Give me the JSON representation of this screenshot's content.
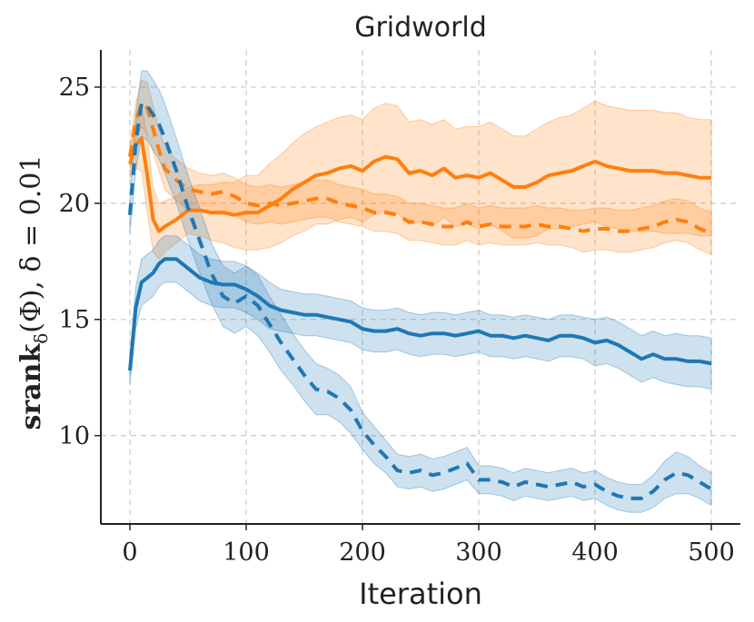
{
  "chart_data": {
    "type": "line",
    "title": "Gridworld",
    "xlabel": "Iteration",
    "ylabel": {
      "main": "srank",
      "subscript": "δ",
      "rest": "(Φ), δ = 0.01"
    },
    "xlim": [
      -25,
      525
    ],
    "ylim": [
      6.2,
      26.6
    ],
    "xticks": [
      0,
      100,
      200,
      300,
      400,
      500
    ],
    "yticks": [
      10,
      15,
      20,
      25
    ],
    "xtick_labels": [
      "0",
      "100",
      "200",
      "300",
      "400",
      "500"
    ],
    "ytick_labels": [
      "10",
      "15",
      "20",
      "25"
    ],
    "grid": true,
    "legend": "none",
    "series": [
      {
        "name": "orange-solid",
        "color": "#ff7f0e",
        "style": "solid",
        "x": [
          0,
          5,
          10,
          15,
          20,
          25,
          30,
          40,
          50,
          60,
          70,
          80,
          90,
          100,
          110,
          120,
          130,
          140,
          150,
          160,
          170,
          180,
          190,
          200,
          210,
          220,
          230,
          240,
          250,
          260,
          270,
          280,
          290,
          300,
          310,
          320,
          330,
          340,
          350,
          360,
          370,
          380,
          390,
          400,
          410,
          420,
          430,
          440,
          450,
          460,
          470,
          480,
          490,
          500
        ],
        "y": [
          21.7,
          22.5,
          22.8,
          21.2,
          19.3,
          18.8,
          19.0,
          19.3,
          19.7,
          19.7,
          19.6,
          19.6,
          19.5,
          19.6,
          19.6,
          19.9,
          20.2,
          20.6,
          20.9,
          21.2,
          21.3,
          21.5,
          21.6,
          21.4,
          21.8,
          22.0,
          21.9,
          21.3,
          21.4,
          21.2,
          21.5,
          21.1,
          21.2,
          21.1,
          21.3,
          21.0,
          20.7,
          20.7,
          20.9,
          21.2,
          21.3,
          21.4,
          21.6,
          21.8,
          21.6,
          21.5,
          21.4,
          21.4,
          21.4,
          21.3,
          21.3,
          21.2,
          21.1,
          21.1
        ],
        "band_halfwidth": [
          0.6,
          1.0,
          1.4,
          1.6,
          1.4,
          1.2,
          1.1,
          1.0,
          1.0,
          1.1,
          1.2,
          1.3,
          1.4,
          1.6,
          1.6,
          1.8,
          1.9,
          2.0,
          2.1,
          2.1,
          2.2,
          2.2,
          2.2,
          2.2,
          2.3,
          2.3,
          2.3,
          2.2,
          2.2,
          2.2,
          2.1,
          2.1,
          2.1,
          2.2,
          2.2,
          2.2,
          2.2,
          2.2,
          2.3,
          2.3,
          2.4,
          2.4,
          2.5,
          2.6,
          2.6,
          2.6,
          2.6,
          2.6,
          2.6,
          2.6,
          2.6,
          2.5,
          2.5,
          2.5
        ]
      },
      {
        "name": "orange-dashed",
        "color": "#ff7f0e",
        "style": "dashed",
        "x": [
          0,
          5,
          10,
          15,
          20,
          25,
          30,
          40,
          50,
          60,
          70,
          80,
          90,
          100,
          110,
          120,
          130,
          140,
          150,
          160,
          170,
          180,
          190,
          200,
          210,
          220,
          230,
          240,
          250,
          260,
          270,
          280,
          290,
          300,
          310,
          320,
          330,
          340,
          350,
          360,
          370,
          380,
          390,
          400,
          410,
          420,
          430,
          440,
          450,
          460,
          470,
          480,
          490,
          500
        ],
        "y": [
          22.0,
          23.5,
          24.3,
          24.1,
          23.2,
          22.3,
          21.5,
          21.0,
          20.6,
          20.5,
          20.4,
          20.5,
          20.3,
          20.0,
          19.9,
          20.0,
          19.9,
          20.0,
          20.1,
          20.2,
          20.2,
          20.0,
          19.9,
          19.8,
          19.6,
          19.6,
          19.5,
          19.2,
          19.2,
          19.1,
          19.0,
          19.0,
          19.2,
          19.0,
          19.1,
          19.0,
          19.0,
          19.0,
          19.1,
          19.0,
          19.0,
          18.9,
          18.8,
          18.9,
          18.9,
          18.8,
          18.8,
          18.9,
          19.0,
          19.2,
          19.3,
          19.2,
          18.9,
          18.7
        ],
        "band_halfwidth": [
          0.5,
          0.8,
          1.0,
          1.1,
          1.0,
          0.9,
          0.9,
          0.9,
          0.9,
          0.8,
          0.8,
          0.8,
          0.8,
          0.8,
          0.8,
          0.8,
          0.8,
          0.8,
          0.8,
          0.8,
          0.8,
          0.8,
          0.8,
          0.8,
          0.8,
          0.8,
          0.8,
          0.8,
          0.8,
          0.8,
          0.8,
          0.8,
          0.8,
          0.8,
          0.8,
          0.8,
          0.8,
          0.8,
          0.8,
          0.8,
          0.8,
          0.8,
          0.9,
          0.9,
          0.9,
          0.9,
          0.9,
          0.9,
          0.9,
          0.9,
          0.9,
          0.9,
          0.9,
          0.9
        ]
      },
      {
        "name": "blue-solid",
        "color": "#1f77b4",
        "style": "solid",
        "x": [
          0,
          5,
          10,
          15,
          20,
          25,
          30,
          40,
          50,
          60,
          70,
          80,
          90,
          100,
          110,
          120,
          130,
          140,
          150,
          160,
          170,
          180,
          190,
          200,
          210,
          220,
          230,
          240,
          250,
          260,
          270,
          280,
          290,
          300,
          310,
          320,
          330,
          340,
          350,
          360,
          370,
          380,
          390,
          400,
          410,
          420,
          430,
          440,
          450,
          460,
          470,
          480,
          490,
          500
        ],
        "y": [
          12.8,
          15.5,
          16.6,
          16.8,
          17.0,
          17.4,
          17.6,
          17.6,
          17.2,
          16.8,
          16.6,
          16.5,
          16.5,
          16.3,
          16.0,
          15.6,
          15.4,
          15.3,
          15.2,
          15.2,
          15.1,
          15.0,
          14.9,
          14.6,
          14.5,
          14.5,
          14.6,
          14.4,
          14.3,
          14.4,
          14.4,
          14.3,
          14.4,
          14.5,
          14.3,
          14.3,
          14.2,
          14.3,
          14.2,
          14.1,
          14.3,
          14.3,
          14.2,
          14.0,
          14.1,
          13.9,
          13.6,
          13.3,
          13.5,
          13.3,
          13.3,
          13.2,
          13.2,
          13.1
        ],
        "band_halfwidth": [
          0.6,
          0.9,
          1.0,
          1.0,
          1.0,
          1.0,
          1.0,
          1.0,
          1.0,
          1.0,
          1.0,
          1.0,
          1.0,
          1.0,
          1.0,
          1.0,
          0.9,
          0.9,
          0.9,
          0.9,
          0.9,
          0.9,
          0.9,
          0.9,
          0.9,
          0.9,
          0.9,
          0.9,
          0.9,
          0.9,
          0.9,
          0.9,
          0.9,
          0.9,
          0.9,
          0.9,
          0.9,
          0.9,
          0.9,
          0.9,
          0.9,
          0.9,
          0.9,
          1.0,
          1.0,
          1.0,
          1.0,
          1.0,
          1.0,
          1.0,
          1.1,
          1.1,
          1.1,
          1.1
        ]
      },
      {
        "name": "blue-dashed",
        "color": "#1f77b4",
        "style": "dashed",
        "x": [
          0,
          5,
          10,
          15,
          20,
          25,
          30,
          40,
          50,
          60,
          70,
          80,
          90,
          100,
          110,
          120,
          130,
          140,
          150,
          160,
          170,
          180,
          190,
          200,
          210,
          220,
          230,
          240,
          250,
          260,
          270,
          280,
          290,
          300,
          310,
          320,
          330,
          340,
          350,
          360,
          370,
          380,
          390,
          400,
          410,
          420,
          430,
          440,
          450,
          460,
          470,
          480,
          490,
          500
        ],
        "y": [
          19.5,
          22.6,
          24.3,
          24.2,
          23.8,
          23.4,
          22.8,
          21.4,
          19.8,
          18.4,
          17.0,
          16.0,
          15.7,
          16.0,
          15.6,
          14.8,
          14.0,
          13.3,
          12.6,
          12.0,
          11.9,
          11.6,
          11.1,
          10.2,
          9.6,
          9.1,
          8.5,
          8.4,
          8.5,
          8.3,
          8.4,
          8.6,
          8.8,
          8.1,
          8.1,
          8.0,
          7.8,
          8.0,
          7.9,
          7.8,
          7.9,
          8.0,
          7.8,
          7.9,
          7.6,
          7.4,
          7.3,
          7.3,
          7.6,
          8.1,
          8.4,
          8.3,
          8.0,
          7.7
        ],
        "band_halfwidth": [
          0.8,
          1.2,
          1.4,
          1.5,
          1.5,
          1.5,
          1.5,
          1.4,
          1.4,
          1.4,
          1.3,
          1.3,
          1.3,
          1.3,
          1.3,
          1.2,
          1.2,
          1.1,
          1.1,
          1.1,
          1.0,
          1.0,
          1.0,
          0.8,
          0.8,
          0.7,
          0.7,
          0.7,
          0.7,
          0.7,
          0.7,
          0.7,
          0.7,
          0.6,
          0.6,
          0.6,
          0.6,
          0.6,
          0.6,
          0.6,
          0.6,
          0.6,
          0.6,
          0.6,
          0.6,
          0.6,
          0.6,
          0.6,
          0.7,
          0.8,
          0.9,
          0.8,
          0.7,
          0.7
        ]
      }
    ]
  }
}
